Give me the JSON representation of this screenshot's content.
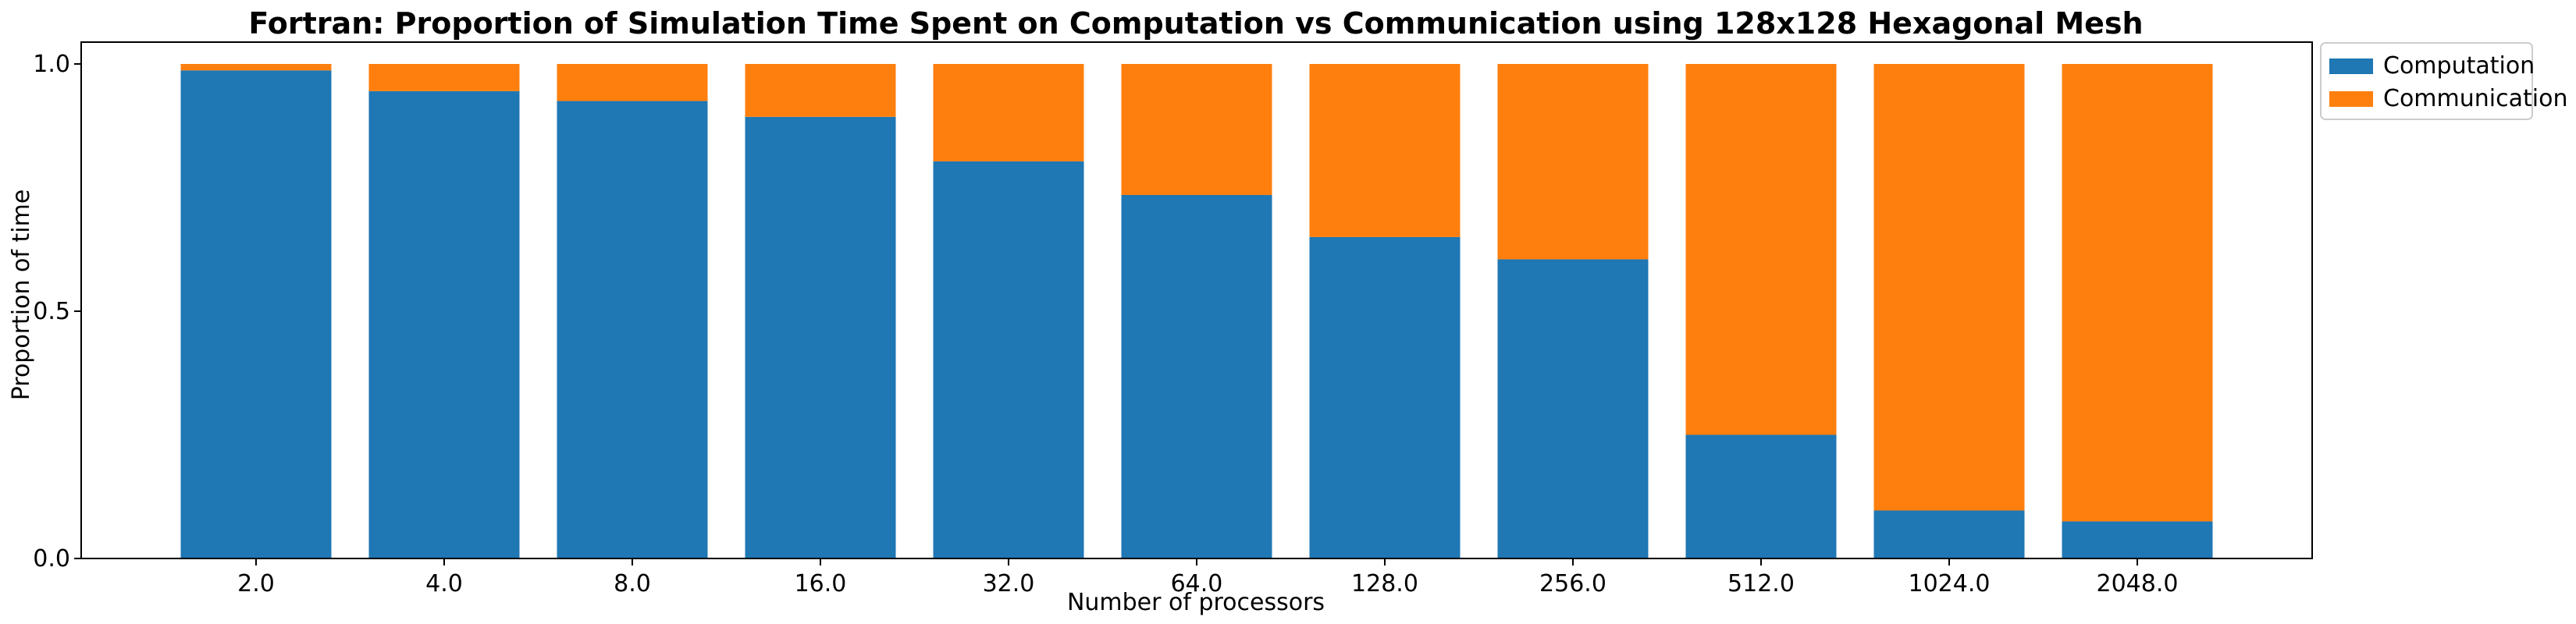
{
  "chart_data": {
    "type": "bar",
    "stacked": true,
    "title": "Fortran: Proportion of Simulation Time Spent on Computation vs Communication using 128x128 Hexagonal Mesh",
    "xlabel": "Number of processors",
    "ylabel": "Proportion of time",
    "categories": [
      "2.0",
      "4.0",
      "8.0",
      "16.0",
      "32.0",
      "64.0",
      "128.0",
      "256.0",
      "512.0",
      "1024.0",
      "2048.0"
    ],
    "ylim": [
      0,
      1.0
    ],
    "yticks": [
      "0.0",
      "0.5",
      "1.0"
    ],
    "series": [
      {
        "name": "Computation",
        "color": "#1f77b4",
        "values": [
          0.987,
          0.945,
          0.925,
          0.893,
          0.803,
          0.735,
          0.65,
          0.605,
          0.25,
          0.097,
          0.075
        ]
      },
      {
        "name": "Communication",
        "color": "#ff7f0e",
        "values": [
          0.013,
          0.055,
          0.075,
          0.107,
          0.197,
          0.265,
          0.35,
          0.395,
          0.75,
          0.903,
          0.925
        ]
      }
    ],
    "legend": {
      "position": "outside-top-right"
    }
  }
}
